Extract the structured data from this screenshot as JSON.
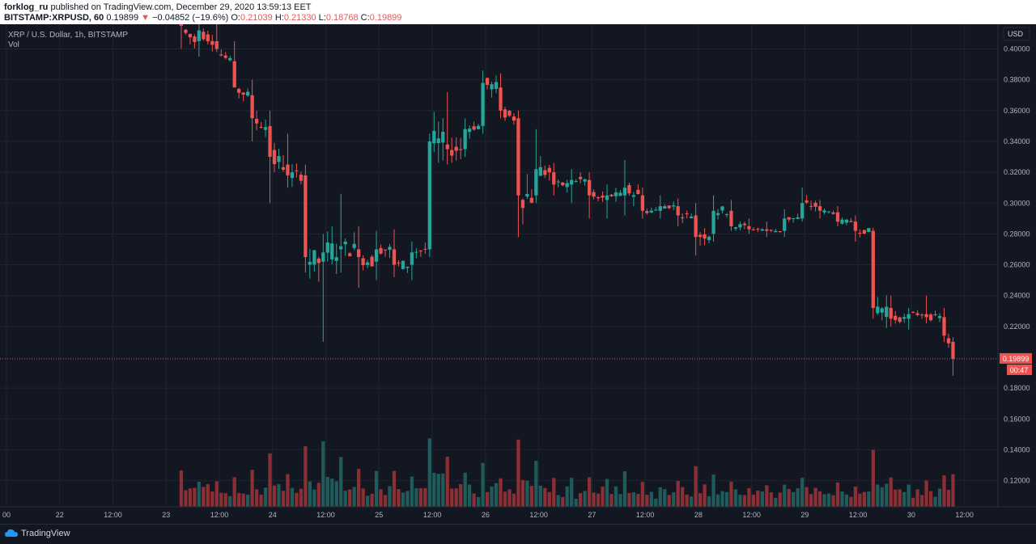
{
  "header": {
    "author": "forklog_ru",
    "published": " published on TradingView.com, December 29, 2020 13:59:13 EET",
    "symbol": "BITSTAMP:XRPUSD, 60",
    "last": "0.19899",
    "change_arrow": "▼",
    "change": "−0.04852 (−19.6%)",
    "open_label": "O:",
    "open": "0.21039",
    "high_label": "H:",
    "high": "0.21330",
    "low_label": "L:",
    "low": "0.18768",
    "close_label": "C:",
    "close": "0.19899"
  },
  "legend": {
    "title": "XRP / U.S. Dollar, 1h, BITSTAMP",
    "vol": "Vol"
  },
  "price_axis": {
    "currency": "USD",
    "last_price_label": "0.19899",
    "countdown": "00:47"
  },
  "footer": {
    "brand": "TradingView"
  },
  "colors": {
    "up": "#26a69a",
    "down": "#ef5350",
    "up_vol": "#1f5b5a",
    "down_vol": "#8b2f34",
    "background": "#131722",
    "grid": "#1f2430"
  },
  "chart_data": {
    "type": "candlestick",
    "x_ticks": [
      "00",
      "22",
      "12:00",
      "23",
      "12:00",
      "24",
      "12:00",
      "25",
      "12:00",
      "26",
      "12:00",
      "27",
      "12:00",
      "28",
      "12:00",
      "29",
      "12:00",
      "30",
      "12:00"
    ],
    "y_ticks": [
      0.12,
      0.14,
      0.16,
      0.18,
      0.22,
      0.24,
      0.26,
      0.28,
      0.3,
      0.32,
      0.34,
      0.36,
      0.38,
      0.4
    ],
    "ylim": [
      0.103,
      0.416
    ],
    "bars_per_day": 24,
    "visible_bars": 225,
    "candles_approx": [
      {
        "i": 40,
        "o": 0.418,
        "h": 0.43,
        "l": 0.4,
        "c": 0.415
      },
      {
        "i": 44,
        "o": 0.405,
        "h": 0.42,
        "l": 0.395,
        "c": 0.412
      },
      {
        "i": 48,
        "o": 0.405,
        "h": 0.418,
        "l": 0.398,
        "c": 0.4
      },
      {
        "i": 52,
        "o": 0.392,
        "h": 0.405,
        "l": 0.378,
        "c": 0.375
      },
      {
        "i": 56,
        "o": 0.37,
        "h": 0.38,
        "l": 0.34,
        "c": 0.355
      },
      {
        "i": 60,
        "o": 0.35,
        "h": 0.36,
        "l": 0.3,
        "c": 0.33
      },
      {
        "i": 64,
        "o": 0.325,
        "h": 0.345,
        "l": 0.31,
        "c": 0.318
      },
      {
        "i": 68,
        "o": 0.318,
        "h": 0.325,
        "l": 0.255,
        "c": 0.265
      },
      {
        "i": 72,
        "o": 0.262,
        "h": 0.28,
        "l": 0.21,
        "c": 0.268
      },
      {
        "i": 76,
        "o": 0.27,
        "h": 0.306,
        "l": 0.255,
        "c": 0.272
      },
      {
        "i": 80,
        "o": 0.27,
        "h": 0.285,
        "l": 0.245,
        "c": 0.265
      },
      {
        "i": 84,
        "o": 0.262,
        "h": 0.282,
        "l": 0.25,
        "c": 0.27
      },
      {
        "i": 88,
        "o": 0.27,
        "h": 0.283,
        "l": 0.252,
        "c": 0.26
      },
      {
        "i": 92,
        "o": 0.26,
        "h": 0.275,
        "l": 0.25,
        "c": 0.268
      },
      {
        "i": 96,
        "o": 0.27,
        "h": 0.345,
        "l": 0.265,
        "c": 0.34
      },
      {
        "i": 100,
        "o": 0.338,
        "h": 0.372,
        "l": 0.325,
        "c": 0.335
      },
      {
        "i": 104,
        "o": 0.335,
        "h": 0.355,
        "l": 0.33,
        "c": 0.348
      },
      {
        "i": 108,
        "o": 0.35,
        "h": 0.386,
        "l": 0.345,
        "c": 0.378
      },
      {
        "i": 112,
        "o": 0.375,
        "h": 0.384,
        "l": 0.355,
        "c": 0.36
      },
      {
        "i": 116,
        "o": 0.355,
        "h": 0.36,
        "l": 0.278,
        "c": 0.305
      },
      {
        "i": 120,
        "o": 0.305,
        "h": 0.348,
        "l": 0.3,
        "c": 0.322
      },
      {
        "i": 124,
        "o": 0.32,
        "h": 0.326,
        "l": 0.305,
        "c": 0.312
      },
      {
        "i": 128,
        "o": 0.312,
        "h": 0.322,
        "l": 0.3,
        "c": 0.315
      },
      {
        "i": 132,
        "o": 0.315,
        "h": 0.32,
        "l": 0.29,
        "c": 0.305
      },
      {
        "i": 136,
        "o": 0.302,
        "h": 0.312,
        "l": 0.29,
        "c": 0.305
      },
      {
        "i": 140,
        "o": 0.305,
        "h": 0.328,
        "l": 0.292,
        "c": 0.31
      },
      {
        "i": 144,
        "o": 0.305,
        "h": 0.31,
        "l": 0.29,
        "c": 0.295
      },
      {
        "i": 148,
        "o": 0.295,
        "h": 0.305,
        "l": 0.29,
        "c": 0.298
      },
      {
        "i": 152,
        "o": 0.298,
        "h": 0.303,
        "l": 0.285,
        "c": 0.292
      },
      {
        "i": 156,
        "o": 0.292,
        "h": 0.3,
        "l": 0.266,
        "c": 0.278
      },
      {
        "i": 160,
        "o": 0.28,
        "h": 0.305,
        "l": 0.275,
        "c": 0.295
      },
      {
        "i": 164,
        "o": 0.295,
        "h": 0.302,
        "l": 0.282,
        "c": 0.285
      },
      {
        "i": 168,
        "o": 0.285,
        "h": 0.29,
        "l": 0.28,
        "c": 0.283
      },
      {
        "i": 172,
        "o": 0.283,
        "h": 0.288,
        "l": 0.278,
        "c": 0.282
      },
      {
        "i": 176,
        "o": 0.282,
        "h": 0.296,
        "l": 0.278,
        "c": 0.29
      },
      {
        "i": 180,
        "o": 0.29,
        "h": 0.31,
        "l": 0.288,
        "c": 0.3
      },
      {
        "i": 184,
        "o": 0.298,
        "h": 0.302,
        "l": 0.29,
        "c": 0.295
      },
      {
        "i": 188,
        "o": 0.294,
        "h": 0.298,
        "l": 0.285,
        "c": 0.288
      },
      {
        "i": 192,
        "o": 0.288,
        "h": 0.292,
        "l": 0.275,
        "c": 0.282
      },
      {
        "i": 196,
        "o": 0.282,
        "h": 0.284,
        "l": 0.225,
        "c": 0.232
      },
      {
        "i": 200,
        "o": 0.232,
        "h": 0.24,
        "l": 0.22,
        "c": 0.225
      },
      {
        "i": 204,
        "o": 0.225,
        "h": 0.232,
        "l": 0.218,
        "c": 0.228
      },
      {
        "i": 208,
        "o": 0.228,
        "h": 0.24,
        "l": 0.222,
        "c": 0.226
      },
      {
        "i": 212,
        "o": 0.226,
        "h": 0.232,
        "l": 0.21,
        "c": 0.214
      },
      {
        "i": 214,
        "o": 0.21,
        "h": 0.213,
        "l": 0.188,
        "c": 0.199
      }
    ]
  }
}
